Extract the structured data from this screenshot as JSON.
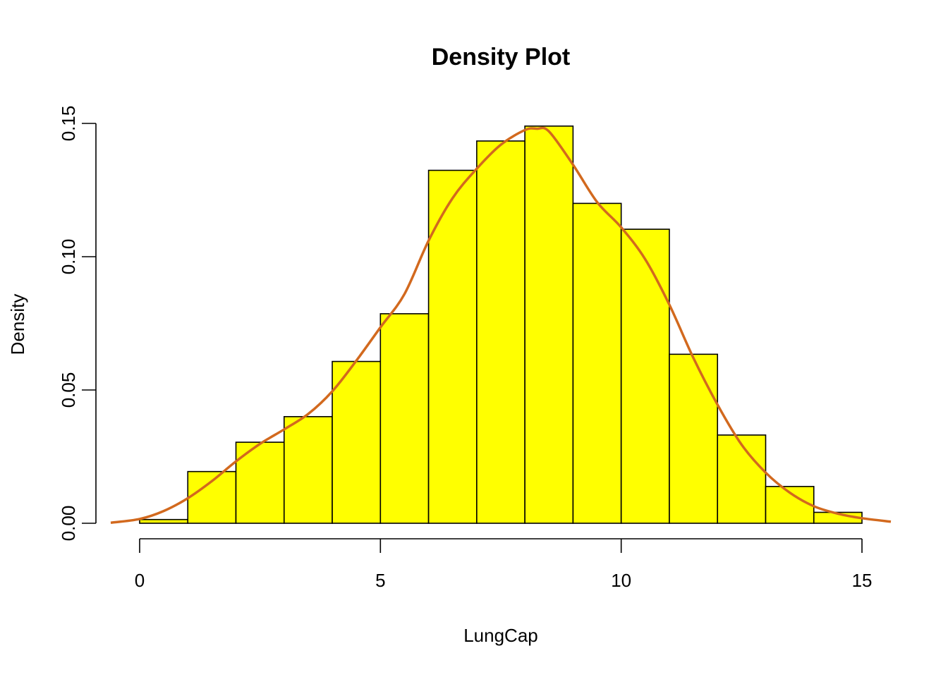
{
  "chart_data": {
    "type": "bar",
    "subtype": "histogram-with-density",
    "title": "Density Plot",
    "xlabel": "LungCap",
    "ylabel": "Density",
    "xlim": [
      -0.6,
      15.6
    ],
    "ylim": [
      0,
      0.15
    ],
    "x_ticks": [
      0,
      5,
      10,
      15
    ],
    "x_tick_labels": [
      "0",
      "5",
      "10",
      "15"
    ],
    "y_ticks": [
      0,
      0.05,
      0.1,
      0.15
    ],
    "y_tick_labels": [
      "0.00",
      "0.05",
      "0.10",
      "0.15"
    ],
    "grid": false,
    "legend": "none",
    "bins": [
      {
        "start": 0,
        "end": 1,
        "density": 0.0014
      },
      {
        "start": 1,
        "end": 2,
        "density": 0.0194
      },
      {
        "start": 2,
        "end": 3,
        "density": 0.0304
      },
      {
        "start": 3,
        "end": 4,
        "density": 0.04
      },
      {
        "start": 4,
        "end": 5,
        "density": 0.0607
      },
      {
        "start": 5,
        "end": 6,
        "density": 0.0786
      },
      {
        "start": 6,
        "end": 7,
        "density": 0.1324
      },
      {
        "start": 7,
        "end": 8,
        "density": 0.1434
      },
      {
        "start": 8,
        "end": 9,
        "density": 0.149
      },
      {
        "start": 9,
        "end": 10,
        "density": 0.12
      },
      {
        "start": 10,
        "end": 11,
        "density": 0.1103
      },
      {
        "start": 11,
        "end": 12,
        "density": 0.0634
      },
      {
        "start": 12,
        "end": 13,
        "density": 0.0331
      },
      {
        "start": 13,
        "end": 14,
        "density": 0.0138
      },
      {
        "start": 14,
        "end": 15,
        "density": 0.0041
      }
    ],
    "density_curve": {
      "x": [
        -0.6,
        0,
        0.5,
        1,
        1.5,
        2,
        2.5,
        3,
        3.5,
        4,
        4.5,
        5,
        5.5,
        6,
        6.5,
        7,
        7.5,
        8,
        8.25,
        8.5,
        9,
        9.5,
        10,
        10.5,
        11,
        11.5,
        12,
        12.5,
        13,
        13.5,
        14,
        14.5,
        15,
        15.6
      ],
      "y": [
        0.0002,
        0.0016,
        0.0046,
        0.0094,
        0.0158,
        0.0232,
        0.0298,
        0.0352,
        0.041,
        0.0495,
        0.061,
        0.0735,
        0.086,
        0.106,
        0.122,
        0.133,
        0.142,
        0.1475,
        0.148,
        0.147,
        0.1345,
        0.1205,
        0.111,
        0.099,
        0.082,
        0.062,
        0.0445,
        0.0295,
        0.019,
        0.0115,
        0.0064,
        0.0036,
        0.0019,
        0.0006
      ]
    },
    "colors": {
      "bar_fill": "#ffff00",
      "bar_stroke": "#000000",
      "curve": "#d2691e"
    }
  }
}
